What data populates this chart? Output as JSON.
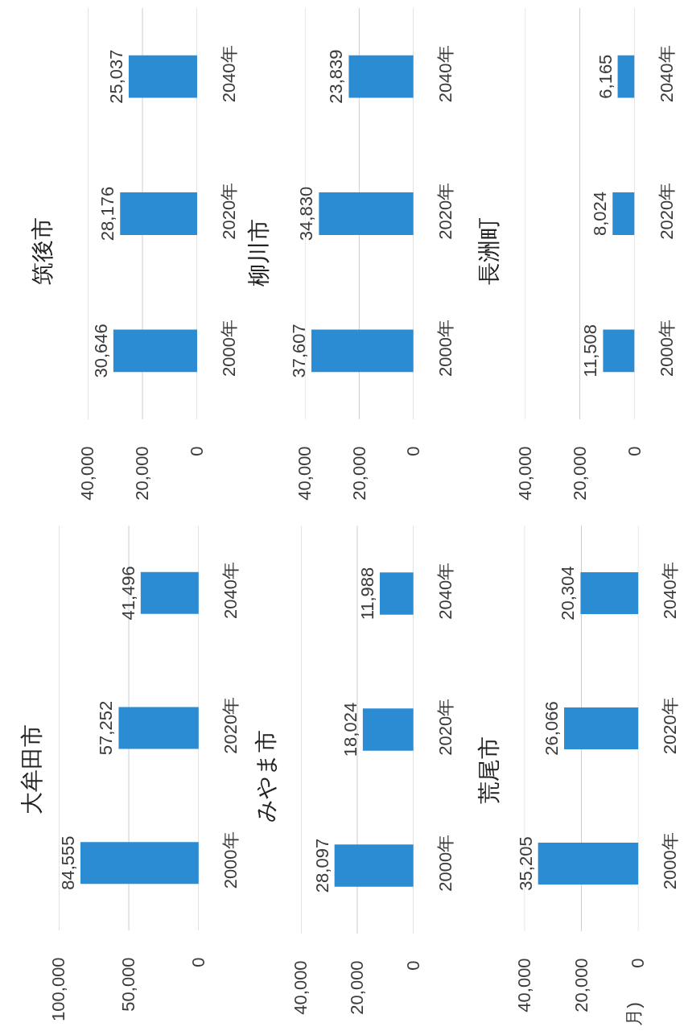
{
  "chart_data": [
    {
      "type": "bar",
      "title": "筑後市",
      "orientation": "horizontal",
      "categories": [
        "2040年",
        "2020年",
        "2000年"
      ],
      "values": [
        25037,
        28176,
        30646
      ],
      "value_labels": [
        "25,037",
        "28,176",
        "30,646"
      ],
      "color": "#2b8bd3",
      "xlim": [
        40000,
        0
      ],
      "xticks": [
        {
          "value": 40000,
          "label": "40,000"
        },
        {
          "value": 20000,
          "label": "20,000"
        },
        0
      ],
      "grid": "x"
    },
    {
      "type": "bar",
      "title": "柳川市",
      "orientation": "horizontal",
      "categories": [
        "2040年",
        "2020年",
        "2000年"
      ],
      "values": [
        23839,
        34830,
        37607
      ],
      "value_labels": [
        "23,839",
        "34,830",
        "37,607"
      ],
      "color": "#2b8bd3",
      "xlim": [
        40000,
        0
      ],
      "xticks": [
        {
          "value": 40000,
          "label": "40,000"
        },
        {
          "value": 20000,
          "label": "20,000"
        },
        0
      ],
      "grid": "x"
    },
    {
      "type": "bar",
      "title": "長洲町",
      "orientation": "horizontal",
      "categories": [
        "2040年",
        "2020年",
        "2000年"
      ],
      "values": [
        6165,
        8024,
        11508
      ],
      "value_labels": [
        "6,165",
        "8,024",
        "11,508"
      ],
      "color": "#2b8bd3",
      "xlim": [
        40000,
        0
      ],
      "xticks": [
        {
          "value": 40000,
          "label": "40,000"
        },
        {
          "value": 20000,
          "label": "20,000"
        },
        0
      ],
      "grid": "x"
    },
    {
      "type": "bar",
      "title": "大牟田市",
      "orientation": "horizontal",
      "categories": [
        "2040年",
        "2020年",
        "2000年"
      ],
      "values": [
        41496,
        57252,
        84555
      ],
      "value_labels": [
        "41,496",
        "57,252",
        "84,555"
      ],
      "color": "#2b8bd3",
      "xlim": [
        100000,
        0
      ],
      "xticks": [
        {
          "value": 100000,
          "label": "100,000"
        },
        {
          "value": 50000,
          "label": "50,000"
        },
        0
      ],
      "grid": "x"
    },
    {
      "type": "bar",
      "title": "みやま市",
      "orientation": "horizontal",
      "categories": [
        "2040年",
        "2020年",
        "2000年"
      ],
      "values": [
        11988,
        18024,
        28097
      ],
      "value_labels": [
        "11,988",
        "18,024",
        "28,097"
      ],
      "color": "#2b8bd3",
      "xlim": [
        40000,
        0
      ],
      "xticks": [
        {
          "value": 40000,
          "label": "40,000"
        },
        {
          "value": 20000,
          "label": "20,000"
        },
        0
      ],
      "grid": "x"
    },
    {
      "type": "bar",
      "title": "荒尾市",
      "orientation": "horizontal",
      "categories": [
        "2040年",
        "2020年",
        "2000年"
      ],
      "values": [
        20304,
        26066,
        35205
      ],
      "value_labels": [
        "20,304",
        "26,066",
        "35,205"
      ],
      "color": "#2b8bd3",
      "xlim": [
        40000,
        0
      ],
      "xticks": [
        {
          "value": 40000,
          "label": "40,000"
        },
        {
          "value": 20000,
          "label": "20,000"
        },
        0
      ],
      "grid": "x",
      "annotations": [
        "月)"
      ]
    }
  ]
}
